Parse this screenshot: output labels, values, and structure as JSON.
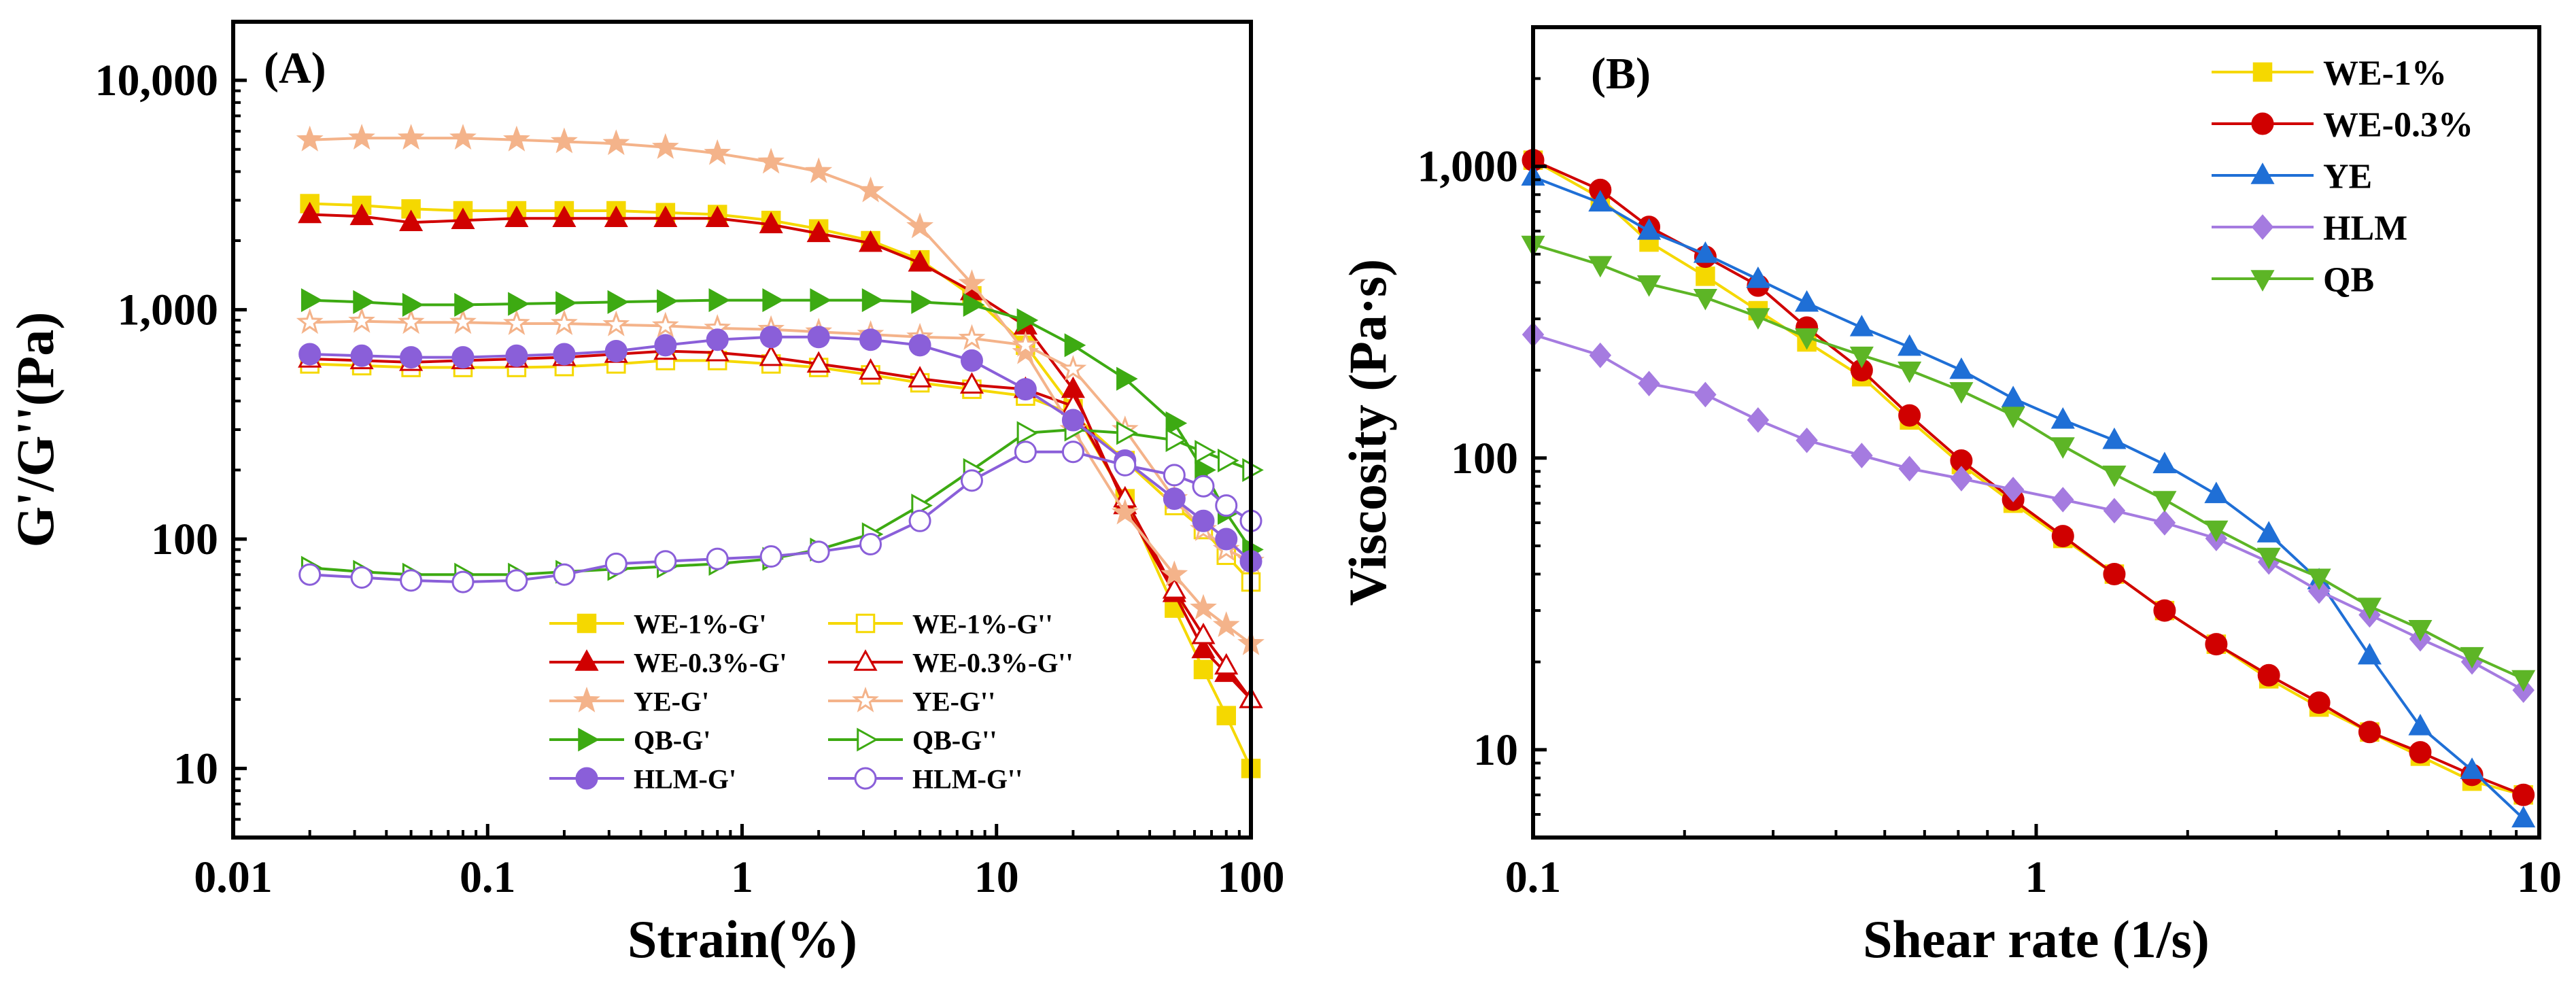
{
  "colors": {
    "WE-1%": "#F5D800",
    "WE-0.3%": "#D00000",
    "YE": "#F4B38A",
    "QB": "#3DAA12",
    "HLM": "#8A5FD9",
    "YE_B": "#1F6FD6",
    "HLM_B": "#A57BE0",
    "QB_B": "#5DB526"
  },
  "chart_data": [
    {
      "type": "line",
      "panel_label": "(A)",
      "xlabel": "Strain(%)",
      "ylabel": "G'/G''(Pa)",
      "xscale": "log",
      "yscale": "log",
      "xlim": [
        0.01,
        100
      ],
      "ylim": [
        5,
        18000
      ],
      "xticks": [
        0.01,
        0.1,
        1,
        10,
        100
      ],
      "xtick_labels": [
        "0.01",
        "0.1",
        "1",
        "10",
        "100"
      ],
      "yticks": [
        10,
        100,
        1000,
        10000
      ],
      "ytick_labels": [
        "10",
        "100",
        "1,000",
        "10,000"
      ],
      "legend_columns": 2,
      "legend_position": "bottom-left",
      "series": [
        {
          "name": "WE-1%-G'",
          "marker": "square",
          "filled": true,
          "color_key": "WE-1%",
          "x": [
            0.02,
            0.032,
            0.05,
            0.08,
            0.13,
            0.2,
            0.32,
            0.5,
            0.8,
            1.3,
            2,
            3.2,
            5,
            8,
            13,
            20,
            32,
            50,
            65,
            80,
            100
          ],
          "y": [
            2900,
            2850,
            2750,
            2700,
            2700,
            2700,
            2700,
            2650,
            2600,
            2450,
            2250,
            2000,
            1650,
            1150,
            700,
            370,
            150,
            50,
            27,
            17,
            10
          ]
        },
        {
          "name": "WE-1%-G''",
          "marker": "square",
          "filled": false,
          "color_key": "WE-1%",
          "x": [
            0.02,
            0.032,
            0.05,
            0.08,
            0.13,
            0.2,
            0.32,
            0.5,
            0.8,
            1.3,
            2,
            3.2,
            5,
            8,
            13,
            20,
            32,
            50,
            65,
            80,
            100
          ],
          "y": [
            580,
            570,
            560,
            560,
            560,
            565,
            580,
            600,
            600,
            580,
            560,
            520,
            480,
            450,
            420,
            350,
            220,
            140,
            110,
            85,
            65
          ]
        },
        {
          "name": "WE-0.3%-G'",
          "marker": "triangle",
          "filled": true,
          "color_key": "WE-0.3%",
          "x": [
            0.02,
            0.032,
            0.05,
            0.08,
            0.13,
            0.2,
            0.32,
            0.5,
            0.8,
            1.3,
            2,
            3.2,
            5,
            8,
            13,
            20,
            32,
            50,
            65,
            80,
            100
          ],
          "y": [
            2600,
            2550,
            2400,
            2450,
            2500,
            2500,
            2500,
            2500,
            2500,
            2350,
            2150,
            1950,
            1600,
            1200,
            850,
            450,
            140,
            58,
            33,
            26,
            20
          ]
        },
        {
          "name": "WE-0.3%-G''",
          "marker": "triangle",
          "filled": false,
          "color_key": "WE-0.3%",
          "x": [
            0.02,
            0.032,
            0.05,
            0.08,
            0.13,
            0.2,
            0.32,
            0.5,
            0.8,
            1.3,
            2,
            3.2,
            5,
            8,
            13,
            20,
            32,
            50,
            65,
            80,
            100
          ],
          "y": [
            610,
            600,
            590,
            600,
            610,
            620,
            640,
            660,
            650,
            620,
            580,
            540,
            500,
            470,
            450,
            380,
            150,
            60,
            38,
            28,
            20
          ]
        },
        {
          "name": "YE-G'",
          "marker": "star",
          "filled": true,
          "color_key": "YE",
          "x": [
            0.02,
            0.032,
            0.05,
            0.08,
            0.13,
            0.2,
            0.32,
            0.5,
            0.8,
            1.3,
            2,
            3.2,
            5,
            8,
            13,
            20,
            32,
            50,
            65,
            80,
            100
          ],
          "y": [
            5500,
            5600,
            5600,
            5600,
            5500,
            5400,
            5300,
            5100,
            4800,
            4400,
            4000,
            3300,
            2300,
            1300,
            650,
            300,
            130,
            70,
            50,
            42,
            35
          ]
        },
        {
          "name": "YE-G''",
          "marker": "star",
          "filled": false,
          "color_key": "YE",
          "x": [
            0.02,
            0.032,
            0.05,
            0.08,
            0.13,
            0.2,
            0.32,
            0.5,
            0.8,
            1.3,
            2,
            3.2,
            5,
            8,
            13,
            20,
            32,
            50,
            65,
            80,
            100
          ],
          "y": [
            880,
            890,
            880,
            880,
            870,
            870,
            860,
            850,
            830,
            820,
            800,
            780,
            760,
            750,
            700,
            550,
            300,
            150,
            110,
            90,
            80
          ]
        },
        {
          "name": "QB-G'",
          "marker": "triangle-right",
          "filled": true,
          "color_key": "QB",
          "x": [
            0.02,
            0.032,
            0.05,
            0.08,
            0.13,
            0.2,
            0.32,
            0.5,
            0.8,
            1.3,
            2,
            3.2,
            5,
            8,
            13,
            20,
            32,
            50,
            65,
            80,
            100
          ],
          "y": [
            1100,
            1080,
            1050,
            1050,
            1060,
            1070,
            1080,
            1090,
            1100,
            1100,
            1100,
            1100,
            1080,
            1050,
            900,
            700,
            500,
            320,
            200,
            130,
            90
          ]
        },
        {
          "name": "QB-G''",
          "marker": "triangle-right",
          "filled": false,
          "color_key": "QB",
          "x": [
            0.02,
            0.032,
            0.05,
            0.08,
            0.13,
            0.2,
            0.32,
            0.5,
            0.8,
            1.3,
            2,
            3.2,
            5,
            8,
            13,
            20,
            32,
            50,
            65,
            80,
            100
          ],
          "y": [
            75,
            72,
            70,
            70,
            70,
            72,
            74,
            76,
            78,
            82,
            90,
            105,
            140,
            200,
            290,
            300,
            290,
            270,
            240,
            220,
            200
          ]
        },
        {
          "name": "HLM-G'",
          "marker": "circle",
          "filled": true,
          "color_key": "HLM",
          "x": [
            0.02,
            0.032,
            0.05,
            0.08,
            0.13,
            0.2,
            0.32,
            0.5,
            0.8,
            1.3,
            2,
            3.2,
            5,
            8,
            13,
            20,
            32,
            50,
            65,
            80,
            100
          ],
          "y": [
            640,
            630,
            620,
            620,
            630,
            640,
            660,
            700,
            740,
            760,
            760,
            740,
            700,
            600,
            450,
            330,
            220,
            150,
            120,
            100,
            80
          ]
        },
        {
          "name": "HLM-G''",
          "marker": "circle",
          "filled": false,
          "color_key": "HLM",
          "x": [
            0.02,
            0.032,
            0.05,
            0.08,
            0.13,
            0.2,
            0.32,
            0.5,
            0.8,
            1.3,
            2,
            3.2,
            5,
            8,
            13,
            20,
            32,
            50,
            65,
            80,
            100
          ],
          "y": [
            70,
            68,
            66,
            65,
            66,
            70,
            78,
            80,
            82,
            84,
            88,
            95,
            120,
            180,
            240,
            240,
            210,
            190,
            170,
            140,
            120
          ]
        }
      ]
    },
    {
      "type": "line",
      "panel_label": "(B)",
      "xlabel": "Shear rate (1/s)",
      "ylabel": "Viscosity (Pa·s)",
      "xscale": "log",
      "yscale": "log",
      "xlim": [
        0.1,
        10
      ],
      "ylim": [
        5,
        3000
      ],
      "xticks": [
        0.1,
        1,
        10
      ],
      "xtick_labels": [
        "0.1",
        "1",
        "10"
      ],
      "yticks": [
        10,
        100,
        1000
      ],
      "ytick_labels": [
        "10",
        "100",
        "1,000"
      ],
      "legend_columns": 1,
      "legend_position": "top-right",
      "series": [
        {
          "name": "WE-1%",
          "marker": "square",
          "filled": true,
          "color_key": "WE-1%",
          "x": [
            0.1,
            0.136,
            0.17,
            0.22,
            0.28,
            0.35,
            0.45,
            0.56,
            0.71,
            0.9,
            1.13,
            1.43,
            1.8,
            2.28,
            2.9,
            3.65,
            4.6,
            5.8,
            7.35,
            9.3
          ],
          "y": [
            1050,
            780,
            550,
            420,
            320,
            250,
            190,
            135,
            95,
            70,
            53,
            40,
            30,
            23,
            17.5,
            14,
            11.5,
            9.5,
            7.8,
            7
          ]
        },
        {
          "name": "WE-0.3%",
          "marker": "circle",
          "filled": true,
          "color_key": "WE-0.3%",
          "x": [
            0.1,
            0.136,
            0.17,
            0.22,
            0.28,
            0.35,
            0.45,
            0.56,
            0.71,
            0.9,
            1.13,
            1.43,
            1.8,
            2.28,
            2.9,
            3.65,
            4.6,
            5.8,
            7.35,
            9.3
          ],
          "y": [
            1050,
            830,
            620,
            490,
            390,
            280,
            200,
            140,
            98,
            72,
            54,
            40,
            30,
            23,
            18,
            14.5,
            11.5,
            9.8,
            8.2,
            7
          ]
        },
        {
          "name": "YE",
          "marker": "triangle",
          "filled": true,
          "color_key": "YE_B",
          "x": [
            0.1,
            0.136,
            0.17,
            0.22,
            0.28,
            0.35,
            0.45,
            0.56,
            0.71,
            0.9,
            1.13,
            1.43,
            1.8,
            2.28,
            2.9,
            3.65,
            4.6,
            5.8,
            7.35,
            9.3
          ],
          "y": [
            920,
            750,
            600,
            500,
            410,
            340,
            280,
            240,
            200,
            160,
            135,
            115,
            95,
            75,
            55,
            38,
            21,
            12,
            8.5,
            5.8
          ]
        },
        {
          "name": "HLM",
          "marker": "diamond",
          "filled": true,
          "color_key": "HLM_B",
          "x": [
            0.1,
            0.136,
            0.17,
            0.22,
            0.28,
            0.35,
            0.45,
            0.56,
            0.71,
            0.9,
            1.13,
            1.43,
            1.8,
            2.28,
            2.9,
            3.65,
            4.6,
            5.8,
            7.35,
            9.3
          ],
          "y": [
            265,
            225,
            180,
            165,
            135,
            115,
            102,
            92,
            85,
            78,
            72,
            66,
            60,
            53,
            44,
            35,
            29,
            24,
            20,
            16
          ]
        },
        {
          "name": "QB",
          "marker": "triangle-down",
          "filled": true,
          "color_key": "QB_B",
          "x": [
            0.1,
            0.136,
            0.17,
            0.22,
            0.28,
            0.35,
            0.45,
            0.56,
            0.71,
            0.9,
            1.13,
            1.43,
            1.8,
            2.28,
            2.9,
            3.65,
            4.6,
            5.8,
            7.35,
            9.3
          ],
          "y": [
            540,
            460,
            395,
            355,
            305,
            260,
            225,
            200,
            170,
            140,
            110,
            88,
            72,
            57,
            46,
            39,
            31,
            26,
            21,
            17.5
          ]
        }
      ]
    }
  ]
}
